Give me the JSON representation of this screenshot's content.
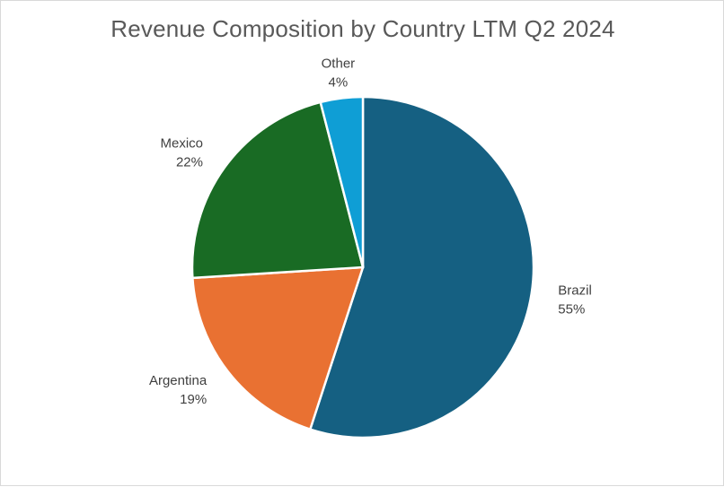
{
  "chart_data": {
    "type": "pie",
    "title": "Revenue Composition by Country LTM Q2 2024",
    "slices": [
      {
        "name": "Brazil",
        "value": 55,
        "label": "55%",
        "color": "#156082"
      },
      {
        "name": "Argentina",
        "value": 19,
        "label": "19%",
        "color": "#E97132"
      },
      {
        "name": "Mexico",
        "value": 22,
        "label": "22%",
        "color": "#196B24"
      },
      {
        "name": "Other",
        "value": 4,
        "label": "4%",
        "color": "#0F9ED5"
      }
    ],
    "start": "12 o'clock",
    "direction": "clockwise",
    "labels": "outside, category name and percentage"
  }
}
